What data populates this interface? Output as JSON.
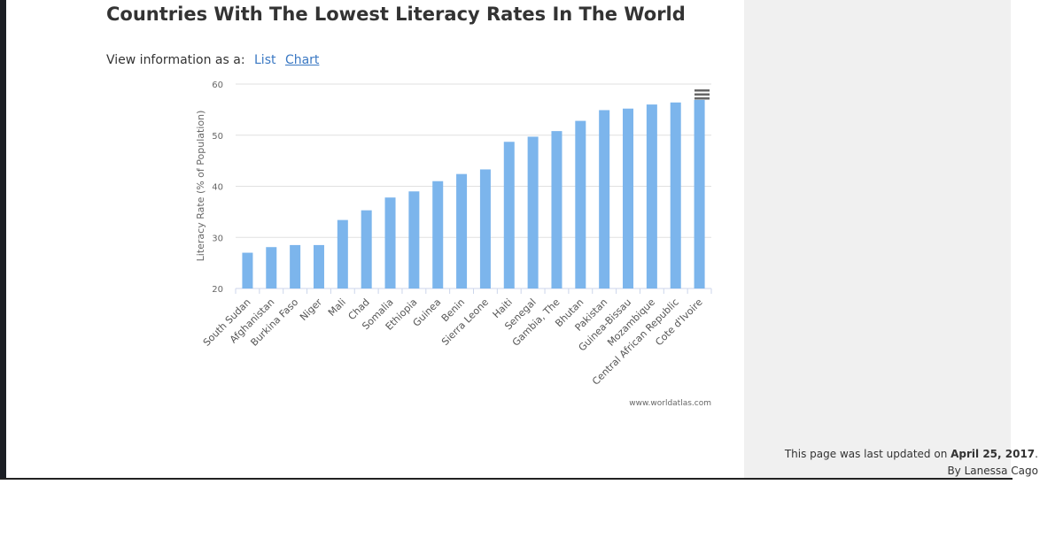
{
  "title": "Countries With The Lowest Literacy Rates In The World",
  "view": {
    "label": "View information as a:",
    "list": "List",
    "chart": "Chart"
  },
  "footer": {
    "updated_prefix": "This page was last updated on ",
    "updated_date": "April 25, 2017",
    "updated_suffix": ".",
    "author": "By Lanessa Cago"
  },
  "chart_data": {
    "type": "bar",
    "title": "",
    "xlabel": "",
    "ylabel": "Literacy Rate (% of Population)",
    "ylim": [
      20,
      60
    ],
    "yticks": [
      "20",
      "30",
      "40",
      "50",
      "60"
    ],
    "grid": true,
    "credit": "www.worldatlas.com",
    "bar_color": "#7cb5ec",
    "categories": [
      "South Sudan",
      "Afghanistan",
      "Burkina Faso",
      "Niger",
      "Mali",
      "Chad",
      "Somalia",
      "Ethiopia",
      "Guinea",
      "Benin",
      "Sierra Leone",
      "Haiti",
      "Senegal",
      "Gambia, The",
      "Bhutan",
      "Pakistan",
      "Guinea-Bissau",
      "Mozambique",
      "Central African Republic",
      "Cote d'Ivoire"
    ],
    "values": [
      27,
      28.1,
      28.5,
      28.5,
      33.4,
      35.3,
      37.8,
      39,
      41,
      42.4,
      43.3,
      48.7,
      49.7,
      50.8,
      52.8,
      54.9,
      55.2,
      56,
      56.4,
      56.9
    ]
  }
}
